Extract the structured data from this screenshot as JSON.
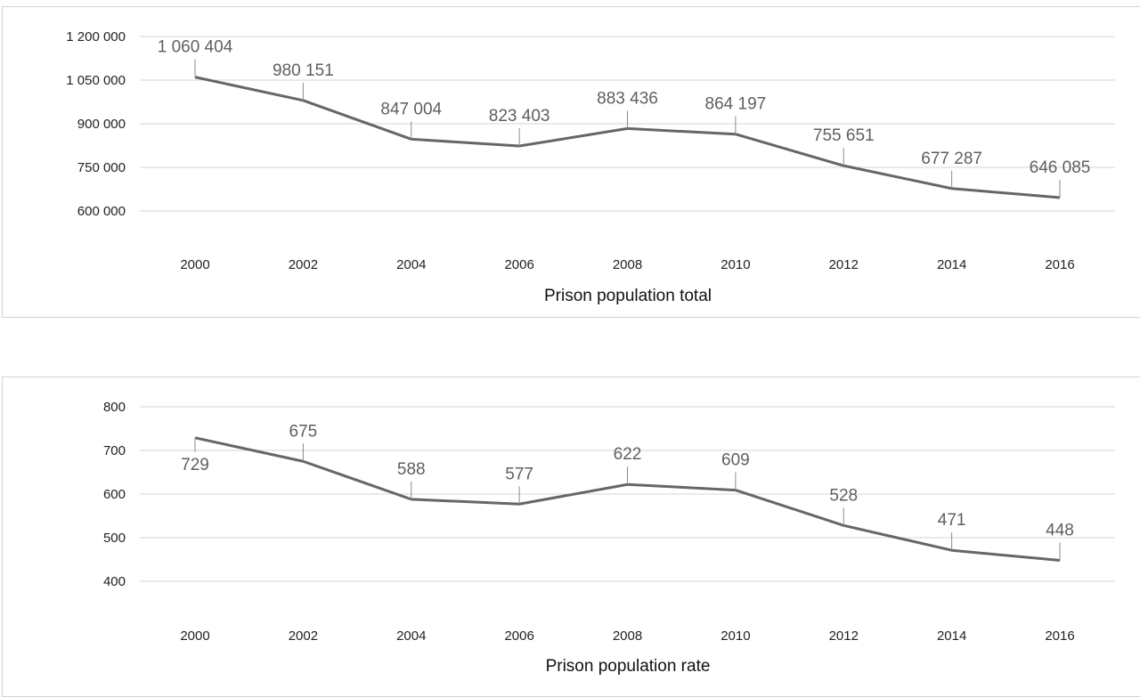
{
  "colors": {
    "line": "#666666",
    "grid": "#d6d6d6",
    "label": "#5f5f5f"
  },
  "chart_data": [
    {
      "type": "line",
      "xlabel": "Prison population total",
      "ylabel": "",
      "categories": [
        "2000",
        "2002",
        "2004",
        "2006",
        "2008",
        "2010",
        "2012",
        "2014",
        "2016"
      ],
      "values": [
        1060404,
        980151,
        847004,
        823403,
        883436,
        864197,
        755651,
        677287,
        646085
      ],
      "data_labels": [
        "1 060 404",
        "980 151",
        "847 004",
        "823 403",
        "883 436",
        "864 197",
        "755 651",
        "677 287",
        "646 085"
      ],
      "yticks": [
        600000,
        750000,
        900000,
        1050000,
        1200000
      ],
      "ytick_labels": [
        "600 000",
        "750 000",
        "900 000",
        "1 050 000",
        "1 200 000"
      ],
      "ylim": [
        600000,
        1200000
      ],
      "grid": true
    },
    {
      "type": "line",
      "xlabel": "Prison population rate",
      "ylabel": "",
      "categories": [
        "2000",
        "2002",
        "2004",
        "2006",
        "2008",
        "2010",
        "2012",
        "2014",
        "2016"
      ],
      "values": [
        729,
        675,
        588,
        577,
        622,
        609,
        528,
        471,
        448
      ],
      "data_labels": [
        "729",
        "675",
        "588",
        "577",
        "622",
        "609",
        "528",
        "471",
        "448"
      ],
      "yticks": [
        400,
        500,
        600,
        700,
        800
      ],
      "ytick_labels": [
        "400",
        "500",
        "600",
        "700",
        "800"
      ],
      "ylim": [
        400,
        800
      ],
      "grid": true
    }
  ]
}
